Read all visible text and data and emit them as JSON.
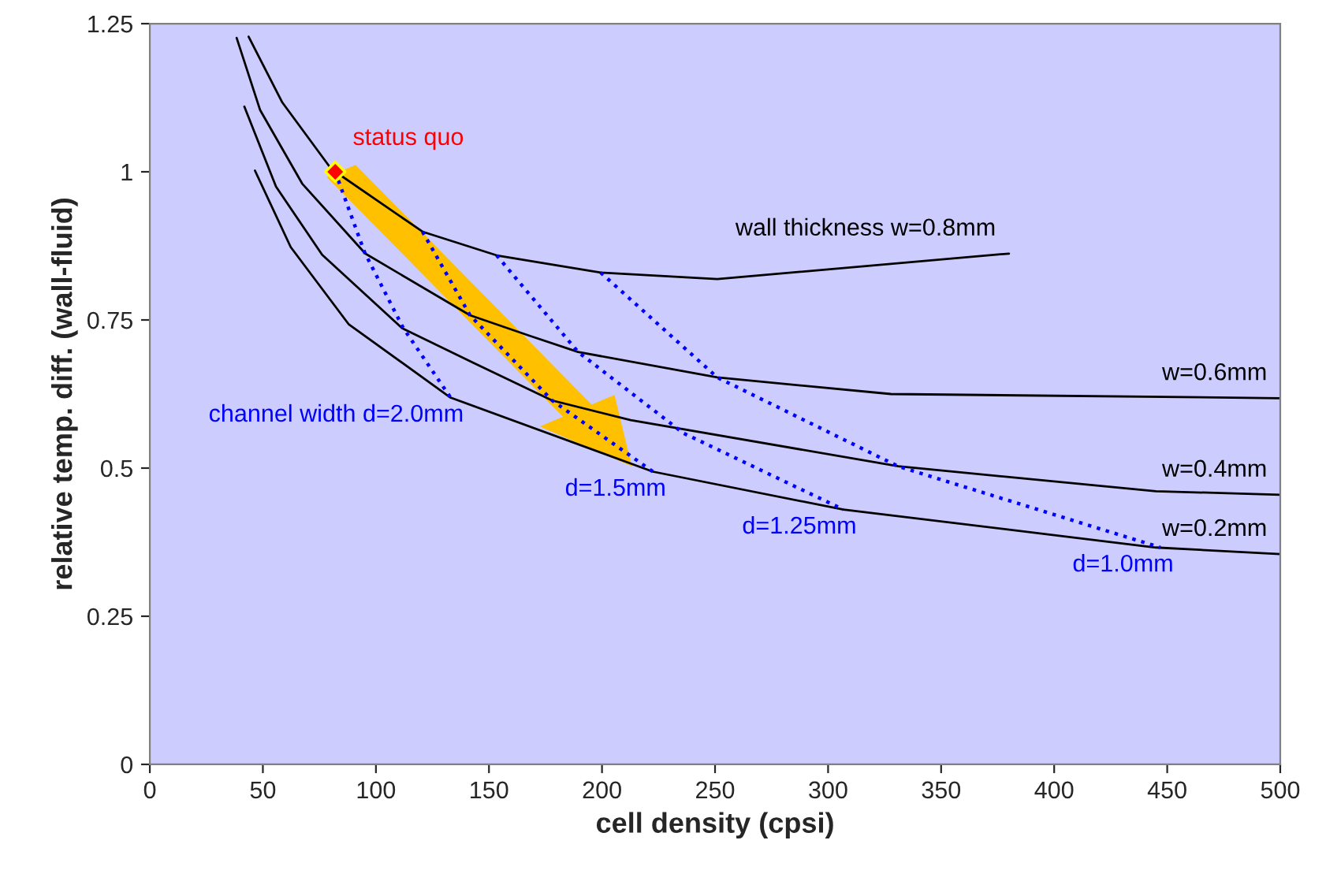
{
  "chart_data": {
    "type": "line",
    "xlabel": "cell density (cpsi)",
    "ylabel": "relative temp. diff. (wall-fluid)",
    "xlim": [
      0,
      500
    ],
    "ylim": [
      0,
      1.25
    ],
    "xticks": [
      0,
      50,
      100,
      150,
      200,
      250,
      300,
      350,
      400,
      450,
      500
    ],
    "yticks": [
      0,
      0.25,
      0.5,
      0.75,
      1,
      1.25
    ],
    "grid": false,
    "legend": false,
    "series": [
      {
        "name": "wall thickness w=0.8mm",
        "color": "#000000",
        "line_style": "solid",
        "x": [
          43.7,
          58.6,
          80.2,
          120.6,
          153.4,
          199.4,
          251,
          380
        ],
        "values": [
          1.228,
          1.117,
          1.005,
          0.899,
          0.859,
          0.83,
          0.819,
          0.862
        ]
      },
      {
        "name": "w=0.6mm",
        "color": "#000000",
        "line_style": "solid",
        "x": [
          38.4,
          48.8,
          67.4,
          95.3,
          141.6,
          167.4,
          189.4,
          251,
          327.8,
          500
        ],
        "values": [
          1.226,
          1.104,
          0.98,
          0.862,
          0.758,
          0.724,
          0.696,
          0.653,
          0.625,
          0.618
        ]
      },
      {
        "name": "w=0.4mm",
        "color": "#000000",
        "line_style": "solid",
        "x": [
          41.8,
          55.8,
          76.2,
          111.6,
          143,
          178,
          212.7,
          331,
          445,
          500
        ],
        "values": [
          1.11,
          0.975,
          0.86,
          0.736,
          0.678,
          0.614,
          0.581,
          0.503,
          0.461,
          0.455
        ]
      },
      {
        "name": "w=0.2mm",
        "color": "#000000",
        "line_style": "solid",
        "x": [
          46.5,
          62.3,
          87.9,
          133,
          222.5,
          306.8,
          445,
          500
        ],
        "values": [
          1.002,
          0.873,
          0.743,
          0.619,
          0.494,
          0.43,
          0.366,
          0.355
        ]
      },
      {
        "name": "channel width d=2.0mm",
        "color": "#0000ff",
        "line_style": "dotted",
        "x": [
          82,
          95,
          112,
          133
        ],
        "values": [
          1.0,
          0.864,
          0.737,
          0.619
        ]
      },
      {
        "name": "d=1.5mm",
        "color": "#0000ff",
        "line_style": "dotted",
        "x": [
          120.6,
          141.6,
          178,
          222.5
        ],
        "values": [
          0.899,
          0.758,
          0.614,
          0.494
        ]
      },
      {
        "name": "d=1.25mm",
        "color": "#0000ff",
        "line_style": "dotted",
        "x": [
          153.4,
          189.4,
          236,
          306.8
        ],
        "values": [
          0.859,
          0.696,
          0.559,
          0.43
        ]
      },
      {
        "name": "d=1.0mm",
        "color": "#0000ff",
        "line_style": "dotted",
        "x": [
          199.4,
          251,
          331,
          447
        ],
        "values": [
          0.83,
          0.653,
          0.503,
          0.366
        ]
      },
      {
        "name": "status quo",
        "type": "scatter",
        "marker": "diamond",
        "color": "#ff0000",
        "x": [
          82
        ],
        "values": [
          1.0
        ]
      }
    ]
  }
}
